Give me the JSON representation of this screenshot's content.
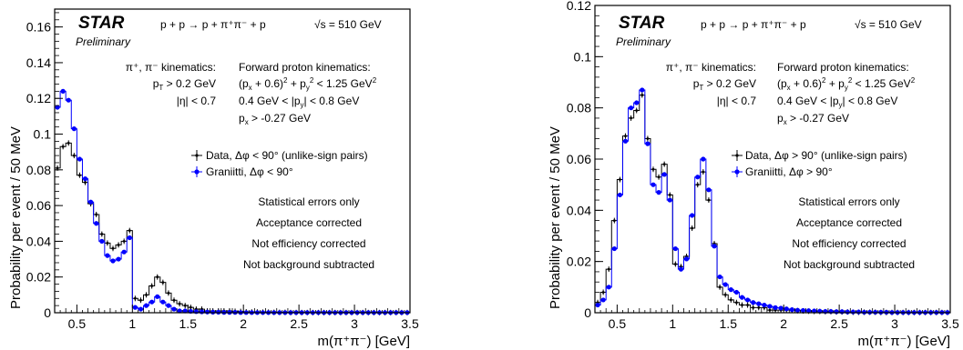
{
  "chart_data": [
    {
      "type": "line",
      "panel": "left",
      "ylabel": "Probability per event / 50 MeV",
      "xlabel": "m(π⁺π⁻) [GeV]",
      "xlim": [
        0.3,
        3.5
      ],
      "ylim": [
        0,
        0.17
      ],
      "xticks": [
        "0.5",
        "1",
        "1.5",
        "2",
        "2.5",
        "3",
        "3.5"
      ],
      "yticks": [
        "0",
        "0.02",
        "0.04",
        "0.06",
        "0.08",
        "0.1",
        "0.12",
        "0.14",
        "0.16"
      ],
      "ytick_values": [
        0,
        0.02,
        0.04,
        0.06,
        0.08,
        0.1,
        0.12,
        0.14,
        0.16
      ],
      "xtick_values": [
        0.5,
        1,
        1.5,
        2,
        2.5,
        3,
        3.5
      ],
      "x": [
        0.325,
        0.375,
        0.425,
        0.475,
        0.525,
        0.575,
        0.625,
        0.675,
        0.725,
        0.775,
        0.825,
        0.875,
        0.925,
        0.975,
        1.025,
        1.075,
        1.125,
        1.175,
        1.225,
        1.275,
        1.325,
        1.375,
        1.425,
        1.475,
        1.525,
        1.575,
        1.625,
        1.675,
        1.725,
        1.775,
        1.825,
        1.875,
        1.925,
        1.975,
        2.025,
        2.075,
        2.125,
        2.175,
        2.225,
        2.275,
        2.325,
        2.375,
        2.425,
        2.475,
        2.525,
        2.575,
        2.625,
        2.675,
        2.725,
        2.775,
        2.825,
        2.875,
        2.925,
        2.975,
        3.025,
        3.075,
        3.125,
        3.175,
        3.225,
        3.275,
        3.325,
        3.375,
        3.425,
        3.475
      ],
      "series": [
        {
          "name": "Data, Δφ < 90° (unlike-sign pairs)",
          "color": "#000000",
          "values": [
            0.081,
            0.093,
            0.095,
            0.088,
            0.077,
            0.073,
            0.061,
            0.055,
            0.044,
            0.039,
            0.036,
            0.038,
            0.04,
            0.046,
            0.008,
            0.007,
            0.01,
            0.015,
            0.02,
            0.017,
            0.011,
            0.007,
            0.005,
            0.004,
            0.003,
            0.002,
            0.002,
            0.001,
            0.001,
            0.001,
            0.001,
            0.001,
            0.0008,
            0.0007,
            0.0005,
            0.0004,
            0.0004,
            0.0003,
            0.0003,
            0.0002,
            0.0002,
            0.0002,
            0.0001,
            0.0001,
            0.0001,
            0.0001,
            0.0001,
            0.0001,
            0.0001,
            0.0001,
            0.0001,
            0.0001,
            0.0001,
            0.0001,
            0.0001,
            0.0001,
            0.0001,
            0.0001,
            0.0001,
            0.0001,
            0.0001,
            0.0001,
            0.0001,
            0.0001
          ]
        },
        {
          "name": "Graniitti, Δφ < 90°",
          "color": "#0000ff",
          "values": [
            0.115,
            0.124,
            0.119,
            0.103,
            0.086,
            0.075,
            0.062,
            0.05,
            0.04,
            0.032,
            0.029,
            0.03,
            0.034,
            0.042,
            0.003,
            0.002,
            0.004,
            0.006,
            0.009,
            0.006,
            0.004,
            0.002,
            0.001,
            0.001,
            0.0008,
            0.0006,
            0.0005,
            0.0004,
            0.0003,
            0.0003,
            0.0002,
            0.0002,
            0.0002,
            0.0001,
            0.0001,
            0.0001,
            0.0001,
            0.0001,
            0.0001,
            0.0001,
            0.0001,
            0.0001,
            0.0001,
            0.0001,
            0.0001,
            0.0001,
            0.0001,
            0.0001,
            0.0001,
            0.0001,
            0.0001,
            0.0001,
            0.0001,
            0.0001,
            0.0001,
            0.0001,
            0.0001,
            0.0001,
            0.0001,
            0.0001,
            0.0001,
            0.0001,
            0.0001,
            0.0001
          ]
        }
      ],
      "legend": [
        "Data, Δφ < 90° (unlike-sign pairs)",
        "Graniitti, Δφ < 90°"
      ]
    },
    {
      "type": "line",
      "panel": "right",
      "ylabel": "Probability per event / 50 MeV",
      "xlabel": "m(π⁺π⁻) [GeV]",
      "xlim": [
        0.3,
        3.5
      ],
      "ylim": [
        0,
        0.12
      ],
      "xticks": [
        "0.5",
        "1",
        "1.5",
        "2",
        "2.5",
        "3",
        "3.5"
      ],
      "yticks": [
        "0",
        "0.02",
        "0.04",
        "0.06",
        "0.08",
        "0.1",
        "0.12"
      ],
      "ytick_values": [
        0,
        0.02,
        0.04,
        0.06,
        0.08,
        0.1,
        0.12
      ],
      "xtick_values": [
        0.5,
        1,
        1.5,
        2,
        2.5,
        3,
        3.5
      ],
      "x": [
        0.325,
        0.375,
        0.425,
        0.475,
        0.525,
        0.575,
        0.625,
        0.675,
        0.725,
        0.775,
        0.825,
        0.875,
        0.925,
        0.975,
        1.025,
        1.075,
        1.125,
        1.175,
        1.225,
        1.275,
        1.325,
        1.375,
        1.425,
        1.475,
        1.525,
        1.575,
        1.625,
        1.675,
        1.725,
        1.775,
        1.825,
        1.875,
        1.925,
        1.975,
        2.025,
        2.075,
        2.125,
        2.175,
        2.225,
        2.275,
        2.325,
        2.375,
        2.425,
        2.475,
        2.525,
        2.575,
        2.625,
        2.675,
        2.725,
        2.775,
        2.825,
        2.875,
        2.925,
        2.975,
        3.025,
        3.075,
        3.125,
        3.175,
        3.225,
        3.275,
        3.325,
        3.375,
        3.425,
        3.475
      ],
      "series": [
        {
          "name": "Data, Δφ > 90° (unlike-sign pairs)",
          "color": "#000000",
          "values": [
            0.004,
            0.008,
            0.017,
            0.036,
            0.052,
            0.069,
            0.076,
            0.079,
            0.085,
            0.068,
            0.056,
            0.053,
            0.058,
            0.046,
            0.019,
            0.018,
            0.022,
            0.033,
            0.05,
            0.055,
            0.044,
            0.027,
            0.01,
            0.007,
            0.005,
            0.004,
            0.003,
            0.003,
            0.002,
            0.002,
            0.002,
            0.001,
            0.001,
            0.001,
            0.001,
            0.001,
            0.0008,
            0.0007,
            0.0006,
            0.0005,
            0.0005,
            0.0004,
            0.0004,
            0.0003,
            0.0003,
            0.0003,
            0.0002,
            0.0002,
            0.0002,
            0.0002,
            0.0002,
            0.0001,
            0.0001,
            0.0001,
            0.0001,
            0.0001,
            0.0001,
            0.0001,
            0.0001,
            0.0001,
            0.0001,
            0.0001,
            0.0001,
            0.0001
          ]
        },
        {
          "name": "Graniitti, Δφ > 90°",
          "color": "#0000ff",
          "values": [
            0.003,
            0.005,
            0.01,
            0.025,
            0.046,
            0.067,
            0.08,
            0.082,
            0.087,
            0.066,
            0.05,
            0.047,
            0.054,
            0.044,
            0.025,
            0.017,
            0.021,
            0.038,
            0.053,
            0.06,
            0.048,
            0.026,
            0.014,
            0.011,
            0.009,
            0.008,
            0.006,
            0.005,
            0.004,
            0.0035,
            0.003,
            0.0025,
            0.002,
            0.0018,
            0.0015,
            0.0012,
            0.001,
            0.0009,
            0.0008,
            0.0007,
            0.0006,
            0.0005,
            0.0005,
            0.0004,
            0.0004,
            0.0003,
            0.0003,
            0.0003,
            0.0002,
            0.0002,
            0.0002,
            0.0002,
            0.0002,
            0.0001,
            0.0001,
            0.0001,
            0.0001,
            0.0001,
            0.0001,
            0.0001,
            0.0001,
            0.0001,
            0.0001,
            0.0001
          ]
        }
      ],
      "legend": [
        "Data, Δφ > 90° (unlike-sign pairs)",
        "Graniitti, Δφ > 90°"
      ]
    }
  ],
  "annotations": {
    "star": "STAR",
    "preliminary": "Preliminary",
    "reaction": "p + p → p + π⁺π⁻ + p",
    "energy": "√s = 510 GeV",
    "pion_kin_title": "π⁺, π⁻ kinematics:",
    "pion_pt": "p_T > 0.2 GeV",
    "pion_eta": "|η| < 0.7",
    "proton_kin_title": "Forward proton kinematics:",
    "proton_cut1": "(p_x + 0.6)² + p_y² < 1.25 GeV²",
    "proton_cut2": "0.4 GeV < |p_y| < 0.8 GeV",
    "proton_cut3": "p_x > -0.27 GeV",
    "notes": [
      "Statistical errors only",
      "Acceptance corrected",
      "Not efficiency corrected",
      "Not background subtracted"
    ]
  }
}
